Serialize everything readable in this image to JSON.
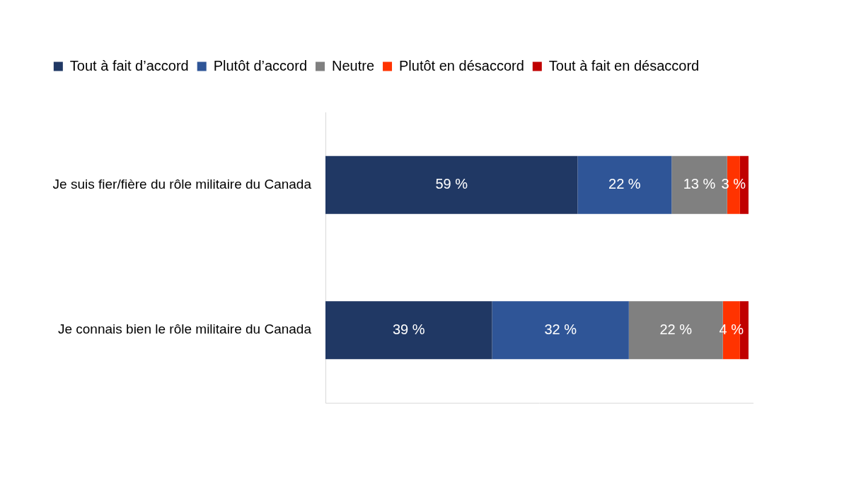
{
  "chart_data": {
    "type": "bar",
    "orientation": "horizontal",
    "stacked": true,
    "categories": [
      "Je suis fier/fière du rôle militaire du Canada",
      "Je connais bien le rôle militaire du Canada"
    ],
    "series": [
      {
        "name": "Tout à fait d’accord",
        "color": "#203864",
        "values": [
          59,
          39
        ],
        "value_labels": [
          "59 %",
          "39 %"
        ]
      },
      {
        "name": "Plutôt d’accord",
        "color": "#2F5597",
        "values": [
          22,
          32
        ],
        "value_labels": [
          "22 %",
          "32 %"
        ]
      },
      {
        "name": "Neutre",
        "color": "#808080",
        "values": [
          13,
          22
        ],
        "value_labels": [
          "13 %",
          "22 %"
        ]
      },
      {
        "name": "Plutôt en désaccord",
        "color": "#FF3300",
        "values": [
          3,
          4
        ],
        "value_labels": [
          "3 %",
          "4 %"
        ]
      },
      {
        "name": "Tout à fait en désaccord",
        "color": "#C00000",
        "values": [
          2,
          2
        ],
        "value_labels": [
          null,
          null
        ]
      }
    ],
    "xlim": [
      0,
      100
    ],
    "grid": false,
    "legend": "top",
    "data_labels": true,
    "tick_labels": "y"
  }
}
